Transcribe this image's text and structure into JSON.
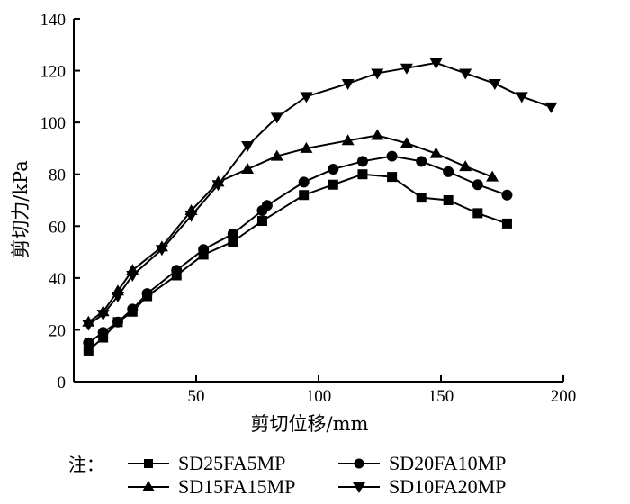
{
  "chart_data": {
    "type": "line",
    "title": "",
    "xlabel": "剪切位移/mm",
    "ylabel": "剪切力/kPa",
    "xlim": [
      0,
      200
    ],
    "ylim": [
      0,
      140
    ],
    "xticks": [
      50,
      100,
      150,
      200
    ],
    "yticks": [
      0,
      20,
      40,
      60,
      80,
      100,
      120,
      140
    ],
    "grid": false,
    "legend_note": "注：",
    "legend_position": "bottom",
    "series": [
      {
        "name": "SD25FA5MP",
        "marker": "square",
        "x": [
          6,
          12,
          18,
          24,
          30,
          42,
          53,
          65,
          77,
          94,
          106,
          118,
          130,
          142,
          153,
          165,
          177
        ],
        "y": [
          12,
          17,
          23,
          27,
          33,
          41,
          49,
          54,
          62,
          72,
          76,
          80,
          79,
          71,
          70,
          65,
          61
        ]
      },
      {
        "name": "SD20FA10MP",
        "marker": "circle",
        "x": [
          6,
          12,
          18,
          24,
          30,
          42,
          53,
          65,
          77,
          79,
          94,
          106,
          118,
          130,
          142,
          153,
          165,
          177
        ],
        "y": [
          15,
          19,
          23,
          28,
          34,
          43,
          51,
          57,
          66,
          68,
          77,
          82,
          85,
          87,
          85,
          81,
          76,
          72
        ]
      },
      {
        "name": "SD15FA15MP",
        "marker": "triangle-up",
        "x": [
          6,
          12,
          18,
          24,
          36,
          48,
          59,
          71,
          83,
          95,
          112,
          124,
          136,
          148,
          160,
          171
        ],
        "y": [
          23,
          27,
          35,
          43,
          52,
          66,
          77,
          82,
          87,
          90,
          93,
          95,
          92,
          88,
          83,
          79
        ]
      },
      {
        "name": "SD10FA20MP",
        "marker": "triangle-down",
        "x": [
          6,
          12,
          18,
          24,
          36,
          48,
          59,
          71,
          83,
          95,
          112,
          124,
          136,
          148,
          160,
          172,
          183,
          195
        ],
        "y": [
          22,
          26,
          33,
          41,
          51,
          64,
          76,
          91,
          102,
          110,
          115,
          119,
          121,
          123,
          119,
          115,
          110,
          106
        ]
      }
    ]
  }
}
